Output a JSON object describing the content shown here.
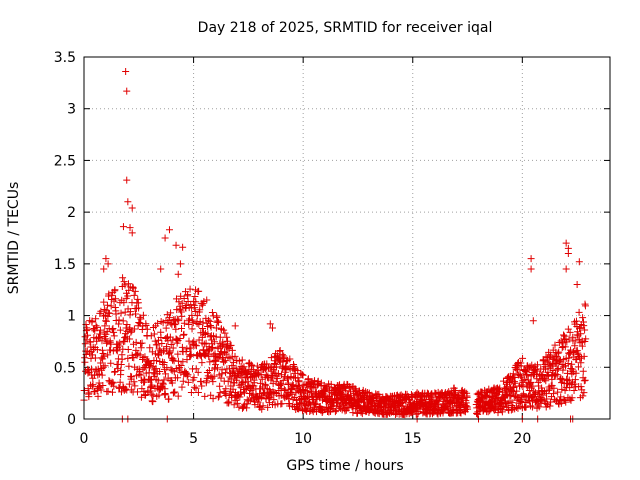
{
  "chart_data": {
    "type": "scatter",
    "title": "Day 218 of 2025, SRMTID for receiver iqal",
    "xlabel": "GPS time / hours",
    "ylabel": "SRMTID / TECUs",
    "xlim": [
      0,
      24.0
    ],
    "ylim": [
      0,
      3.5
    ],
    "grid": true,
    "marker": "+",
    "color": "#e00000",
    "x_ticks": [
      {
        "value": 0,
        "label": "0"
      },
      {
        "value": 5,
        "label": "5"
      },
      {
        "value": 10,
        "label": "10"
      },
      {
        "value": 15,
        "label": "15"
      },
      {
        "value": 20,
        "label": "20"
      }
    ],
    "y_ticks": [
      {
        "value": 0,
        "label": "0"
      },
      {
        "value": 0.5,
        "label": "0.5"
      },
      {
        "value": 1,
        "label": "1"
      },
      {
        "value": 1.5,
        "label": "1.5"
      },
      {
        "value": 2,
        "label": "2"
      },
      {
        "value": 2.5,
        "label": "2.5"
      },
      {
        "value": 3,
        "label": "3"
      },
      {
        "value": 3.5,
        "label": "3.5"
      }
    ],
    "envelope": {
      "description": "typical SRMTID level (TECU) vs GPS hour, sampled densely",
      "x": [
        0,
        1,
        2,
        3,
        4,
        5,
        6,
        7,
        8,
        9,
        10,
        11,
        12,
        13,
        14,
        15,
        16,
        17,
        17.5,
        18,
        19,
        20,
        20.5,
        21,
        22,
        23
      ],
      "y": [
        0.55,
        0.7,
        0.85,
        0.5,
        0.65,
        0.8,
        0.6,
        0.35,
        0.3,
        0.4,
        0.25,
        0.2,
        0.2,
        0.15,
        0.13,
        0.15,
        0.15,
        0.18,
        0.15,
        0.15,
        0.2,
        0.35,
        0.3,
        0.35,
        0.5,
        0.7
      ]
    },
    "notable_points": [
      {
        "x": 1.9,
        "y": 3.36
      },
      {
        "x": 1.95,
        "y": 3.17
      },
      {
        "x": 1.95,
        "y": 2.31
      },
      {
        "x": 2.0,
        "y": 2.1
      },
      {
        "x": 2.2,
        "y": 2.04
      },
      {
        "x": 1.8,
        "y": 1.86
      },
      {
        "x": 2.1,
        "y": 1.85
      },
      {
        "x": 2.2,
        "y": 1.8
      },
      {
        "x": 3.9,
        "y": 1.83
      },
      {
        "x": 3.7,
        "y": 1.75
      },
      {
        "x": 4.2,
        "y": 1.68
      },
      {
        "x": 4.5,
        "y": 1.66
      },
      {
        "x": 4.4,
        "y": 1.5
      },
      {
        "x": 4.3,
        "y": 1.4
      },
      {
        "x": 3.5,
        "y": 1.45
      },
      {
        "x": 1.0,
        "y": 1.55
      },
      {
        "x": 1.1,
        "y": 1.5
      },
      {
        "x": 0.9,
        "y": 1.45
      },
      {
        "x": 20.4,
        "y": 1.55
      },
      {
        "x": 20.4,
        "y": 1.45
      },
      {
        "x": 22.0,
        "y": 1.7
      },
      {
        "x": 22.1,
        "y": 1.65
      },
      {
        "x": 22.1,
        "y": 1.6
      },
      {
        "x": 22.6,
        "y": 1.52
      },
      {
        "x": 22.0,
        "y": 1.45
      },
      {
        "x": 22.5,
        "y": 1.3
      },
      {
        "x": 20.5,
        "y": 0.95
      },
      {
        "x": 8.5,
        "y": 0.92
      },
      {
        "x": 8.6,
        "y": 0.88
      },
      {
        "x": 6.9,
        "y": 0.9
      },
      {
        "x": 5.6,
        "y": 1.15
      },
      {
        "x": 5.4,
        "y": 1.1
      }
    ],
    "zero_points_x": [
      1.75,
      2.0,
      3.8,
      15.2,
      18.0,
      20.0,
      20.7,
      22.2,
      22.3
    ]
  }
}
